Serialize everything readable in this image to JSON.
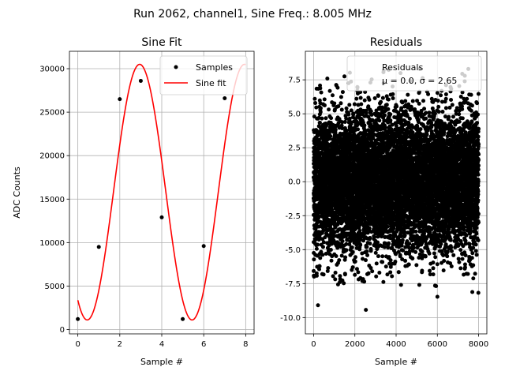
{
  "figure": {
    "title": "Run 2062, channel1, Sine Freq.: 8.005 MHz"
  },
  "chart_data": [
    {
      "type": "line",
      "title": "Sine Fit",
      "xlabel": "Sample #",
      "ylabel": "ADC Counts",
      "xlim": [
        -0.4,
        8.4
      ],
      "ylim": [
        -500,
        32000
      ],
      "xticks": [
        0,
        2,
        4,
        6,
        8
      ],
      "yticks": [
        0,
        5000,
        10000,
        15000,
        20000,
        25000,
        30000
      ],
      "grid": true,
      "legend": {
        "position": "top-right",
        "entries": [
          "Samples",
          "Sine fit"
        ]
      },
      "series": [
        {
          "name": "Samples",
          "kind": "scatter",
          "color": "#000000",
          "x": [
            0,
            1,
            2,
            3,
            4,
            5,
            6,
            7
          ],
          "y": [
            1200,
            9500,
            26500,
            28600,
            12900,
            1200,
            9600,
            26600
          ]
        },
        {
          "name": "Sine fit",
          "kind": "line",
          "color": "#ff0000",
          "amplitude": 14700,
          "offset": 15800,
          "period_samples": 4.997,
          "phase_deg": 57.7,
          "x_range": [
            0,
            8
          ]
        }
      ]
    },
    {
      "type": "scatter",
      "title": "Residuals",
      "xlabel": "Sample #",
      "ylabel": "",
      "xlim": [
        -400,
        8400
      ],
      "ylim": [
        -11.2,
        9.6
      ],
      "xticks": [
        0,
        2000,
        4000,
        6000,
        8000
      ],
      "yticks": [
        -10.0,
        -7.5,
        -5.0,
        -2.5,
        0.0,
        2.5,
        5.0,
        7.5
      ],
      "grid": true,
      "legend": {
        "position": "top-right",
        "entries": [
          "Residuals",
          "μ = 0.0, σ = 2.65"
        ]
      },
      "series": [
        {
          "name": "Residuals",
          "color": "#000000",
          "count": 8000,
          "x_range": [
            0,
            8000
          ],
          "mean": 0.0,
          "std": 2.65,
          "y_clip": [
            -10.6,
            8.3
          ]
        }
      ]
    }
  ]
}
